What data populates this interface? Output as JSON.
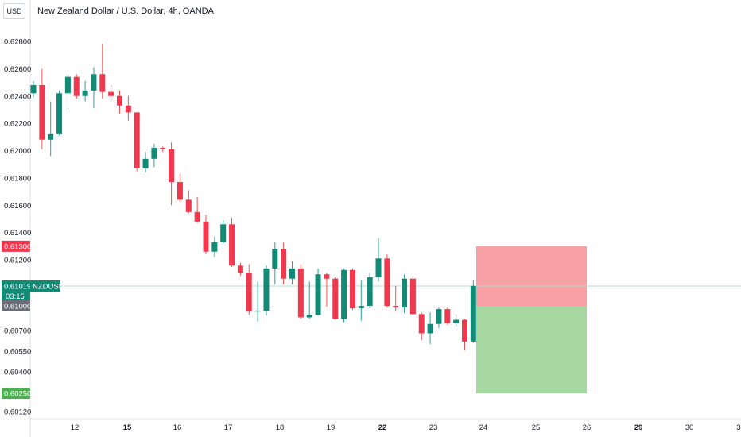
{
  "header": {
    "title": "New Zealand Dollar / U.S. Dollar, 4h, OANDA",
    "currency": "USD"
  },
  "colors": {
    "up": "#26a69a",
    "down": "#ef5350",
    "up_fill": "#118a76",
    "down_fill": "#f0394f",
    "stop_zone": "#f7a1a7",
    "target_zone": "#a6d7a0",
    "current_line": "#b2ddd6",
    "grid": "#ffffff",
    "axis_text": "#131722"
  },
  "chart_data": {
    "type": "candlestick",
    "title": "New Zealand Dollar / U.S. Dollar, 4h, OANDA",
    "symbol": "NZDUSD",
    "y_ticks": [
      "0.62800",
      "0.62600",
      "0.62400",
      "0.62200",
      "0.62000",
      "0.61800",
      "0.61600",
      "0.61400",
      "0.61200",
      "0.60700",
      "0.60550",
      "0.60400",
      "0.60120"
    ],
    "x_ticks": [
      {
        "label": "12",
        "bold": false
      },
      {
        "label": "15",
        "bold": true
      },
      {
        "label": "16",
        "bold": false
      },
      {
        "label": "17",
        "bold": false
      },
      {
        "label": "18",
        "bold": false
      },
      {
        "label": "19",
        "bold": false
      },
      {
        "label": "22",
        "bold": true
      },
      {
        "label": "23",
        "bold": false
      },
      {
        "label": "24",
        "bold": false
      },
      {
        "label": "25",
        "bold": false
      },
      {
        "label": "26",
        "bold": false
      },
      {
        "label": "29",
        "bold": true
      },
      {
        "label": "30",
        "bold": false
      },
      {
        "label": "3",
        "bold": false
      }
    ],
    "price_tags": [
      {
        "name": "stop-tag",
        "label": "0.61300",
        "price": 0.613,
        "color": "#f0394f"
      },
      {
        "name": "current-price-tag",
        "label": "0.61019",
        "sublabel": "NZDUSD",
        "countdown": "03:15",
        "price": 0.61019,
        "color": "#118a76"
      },
      {
        "name": "entry-tag",
        "label": "0.61000",
        "price": 0.61,
        "color": "#6a6d78"
      },
      {
        "name": "target-tag",
        "label": "0.60250",
        "price": 0.6025,
        "color": "#4caf50"
      }
    ],
    "position": {
      "entry": 0.61,
      "stop": 0.613,
      "target": 0.6025
    },
    "candles": [
      [
        0.6242,
        0.6248,
        0.6239,
        0.6251
      ],
      [
        0.6248,
        0.6208,
        0.6201,
        0.626
      ],
      [
        0.6208,
        0.6212,
        0.6196,
        0.6236
      ],
      [
        0.6212,
        0.6242,
        0.6211,
        0.6244
      ],
      [
        0.6242,
        0.6254,
        0.623,
        0.6256
      ],
      [
        0.6254,
        0.624,
        0.6238,
        0.6256
      ],
      [
        0.624,
        0.6244,
        0.6236,
        0.6251
      ],
      [
        0.6244,
        0.6256,
        0.6231,
        0.6261
      ],
      [
        0.6256,
        0.6243,
        0.6238,
        0.6278
      ],
      [
        0.6243,
        0.624,
        0.6236,
        0.6248
      ],
      [
        0.624,
        0.6233,
        0.6227,
        0.6244
      ],
      [
        0.6233,
        0.6228,
        0.6222,
        0.624
      ],
      [
        0.6228,
        0.6187,
        0.6185,
        0.6228
      ],
      [
        0.6187,
        0.6194,
        0.6184,
        0.6199
      ],
      [
        0.6194,
        0.6202,
        0.6188,
        0.6205
      ],
      [
        0.6202,
        0.6201,
        0.6199,
        0.6203
      ],
      [
        0.6201,
        0.6177,
        0.616,
        0.6206
      ],
      [
        0.6177,
        0.6164,
        0.6162,
        0.6183
      ],
      [
        0.6164,
        0.6155,
        0.6154,
        0.6171
      ],
      [
        0.6155,
        0.6148,
        0.6147,
        0.6166
      ],
      [
        0.6148,
        0.6126,
        0.6124,
        0.6153
      ],
      [
        0.6126,
        0.6133,
        0.6122,
        0.6137
      ],
      [
        0.6133,
        0.6146,
        0.6132,
        0.6149
      ],
      [
        0.6146,
        0.6116,
        0.6115,
        0.6151
      ],
      [
        0.6116,
        0.6111,
        0.6109,
        0.6118
      ],
      [
        0.6111,
        0.6093,
        0.6089,
        0.6117
      ],
      [
        0.6093,
        0.6094,
        0.6081,
        0.6105
      ],
      [
        0.6094,
        0.6114,
        0.6088,
        0.6116
      ],
      [
        0.6114,
        0.6128,
        0.6103,
        0.6133
      ],
      [
        0.6128,
        0.6107,
        0.6103,
        0.6133
      ],
      [
        0.6107,
        0.6114,
        0.6103,
        0.6119
      ],
      [
        0.6114,
        0.6086,
        0.6084,
        0.6117
      ],
      [
        0.6086,
        0.6089,
        0.6084,
        0.6105
      ],
      [
        0.6089,
        0.611,
        0.6088,
        0.6114
      ],
      [
        0.611,
        0.6107,
        0.6099,
        0.6111
      ],
      [
        0.6107,
        0.6084,
        0.6083,
        0.6108
      ],
      [
        0.6084,
        0.6113,
        0.608,
        0.6114
      ],
      [
        0.6113,
        0.6097,
        0.6095,
        0.6114
      ],
      [
        0.6097,
        0.61,
        0.6082,
        0.6106
      ],
      [
        0.61,
        0.6108,
        0.6097,
        0.6111
      ],
      [
        0.6108,
        0.6121,
        0.6105,
        0.6136
      ],
      [
        0.6121,
        0.61,
        0.6098,
        0.6124
      ],
      [
        0.61,
        0.6098,
        0.6093,
        0.6102
      ],
      [
        0.6098,
        0.6107,
        0.6091,
        0.611
      ],
      [
        0.6107,
        0.609,
        0.6089,
        0.6109
      ],
      [
        0.609,
        0.6068,
        0.6063,
        0.6092
      ],
      [
        0.6068,
        0.6078,
        0.606,
        0.6092
      ],
      [
        0.6078,
        0.6096,
        0.6073,
        0.6098
      ],
      [
        0.6096,
        0.6079,
        0.6077,
        0.6098
      ],
      [
        0.6079,
        0.6083,
        0.6075,
        0.609
      ],
      [
        0.6083,
        0.6062,
        0.6056,
        0.6084
      ],
      [
        0.6062,
        0.6102,
        0.6061,
        0.6106
      ]
    ]
  }
}
